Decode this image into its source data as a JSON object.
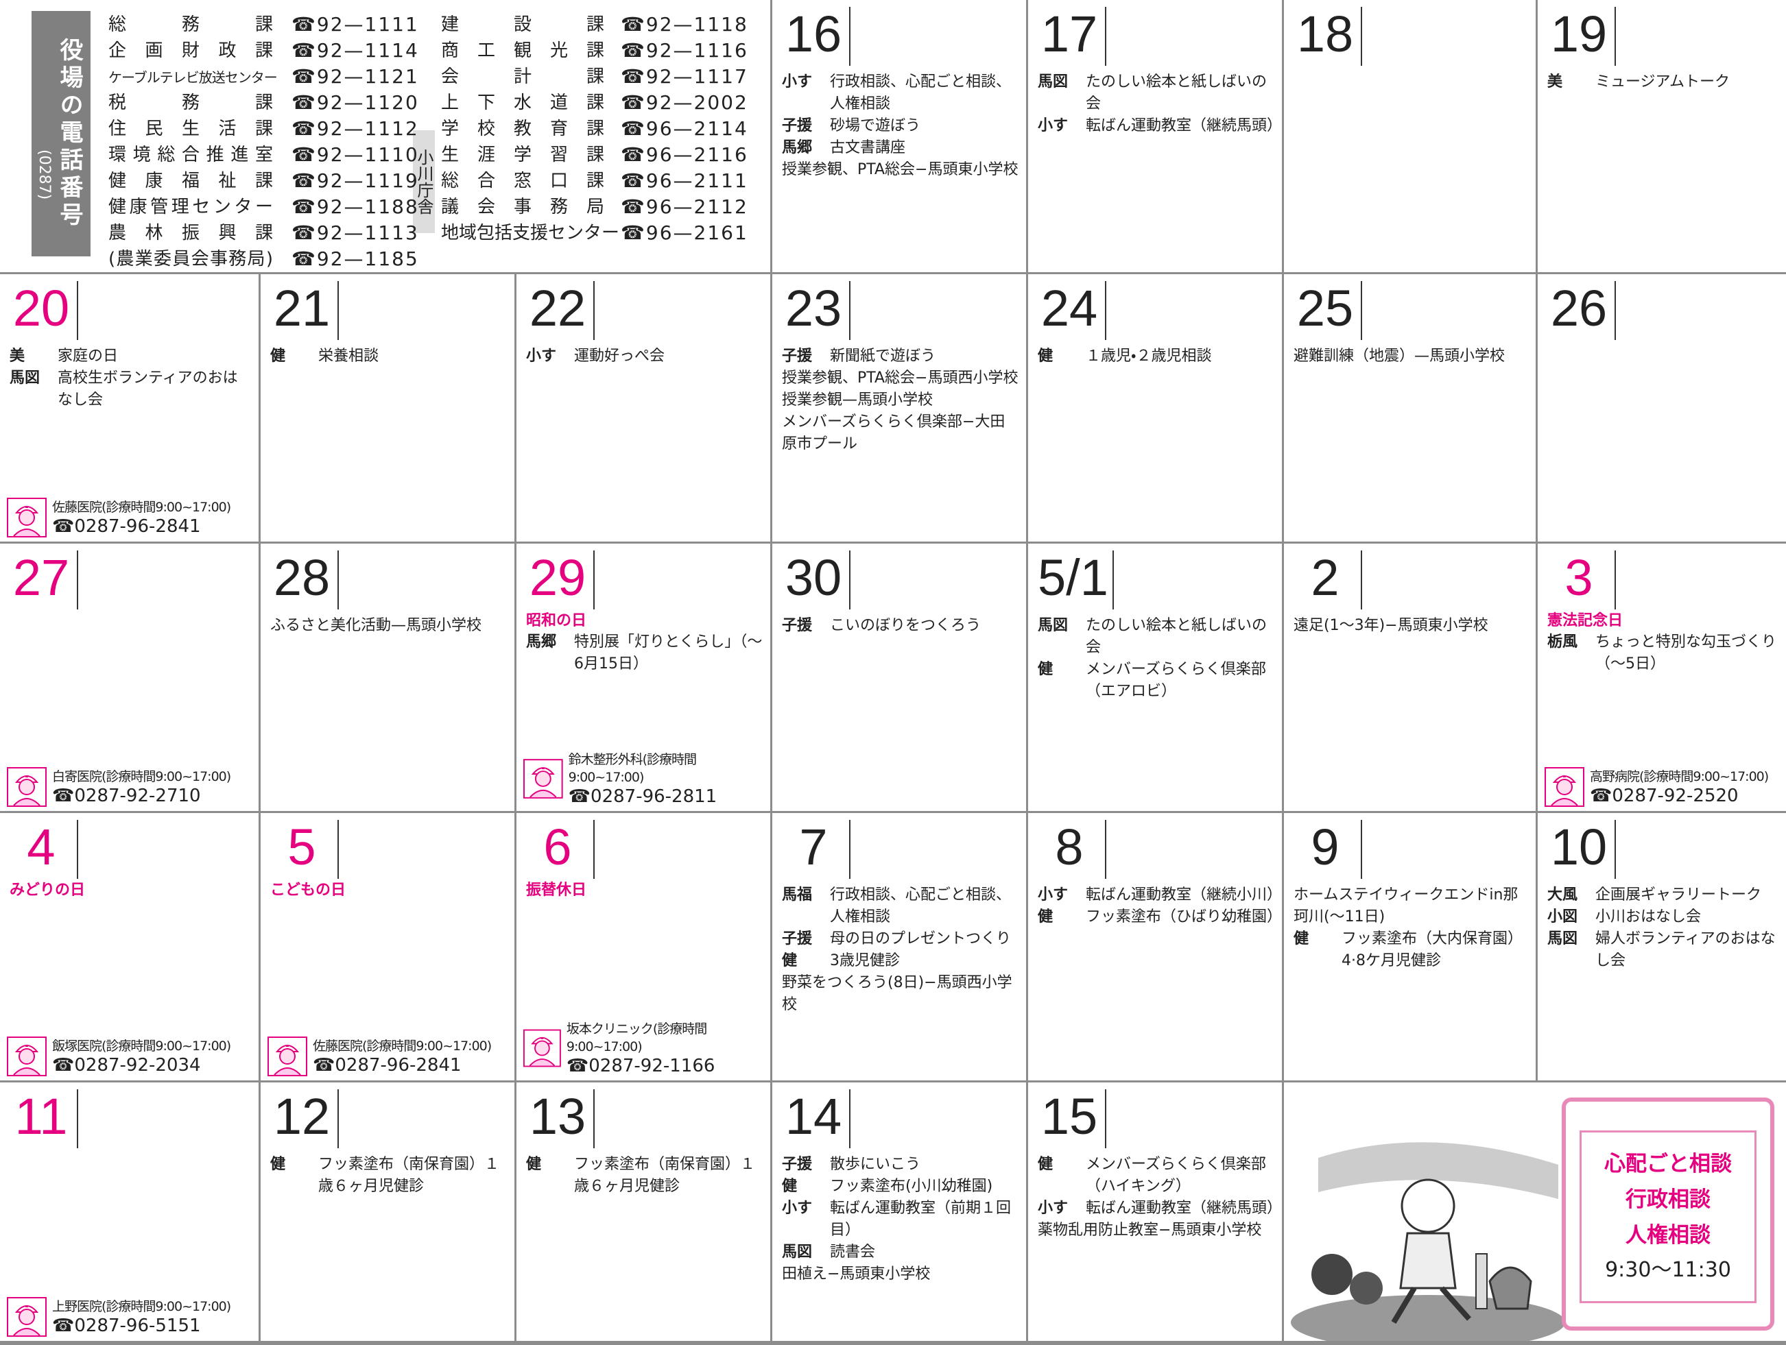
{
  "directory": {
    "title": "役場の電話番号",
    "area_code": "(0287)",
    "branch_label": "小川庁舎",
    "left": [
      {
        "name": "総務課",
        "tel": "☎92—1111"
      },
      {
        "name": "企画財政課",
        "tel": "☎92—1114"
      },
      {
        "name": "ケーブルテレビ放送センター",
        "tel": "☎92—1121"
      },
      {
        "name": "税務課",
        "tel": "☎92—1120"
      },
      {
        "name": "住民生活課",
        "tel": "☎92—1112"
      },
      {
        "name": "環境総合推進室",
        "tel": "☎92—1110"
      },
      {
        "name": "健康福祉課",
        "tel": "☎92—1119"
      },
      {
        "name": "健康管理センター",
        "tel": "☎92—1188"
      },
      {
        "name": "農林振興課",
        "tel": "☎92—1113"
      },
      {
        "name": "(農業委員会事務局)",
        "tel": "☎92—1185"
      }
    ],
    "right": [
      {
        "name": "建設課",
        "tel": "☎92—1118"
      },
      {
        "name": "商工観光課",
        "tel": "☎92—1116"
      },
      {
        "name": "会計課",
        "tel": "☎92—1117"
      },
      {
        "name": "上下水道課",
        "tel": "☎92—2002"
      },
      {
        "name": "学校教育課",
        "tel": "☎96—2114"
      },
      {
        "name": "生涯学習課",
        "tel": "☎96—2116"
      },
      {
        "name": "総合窓口課",
        "tel": "☎96—2111"
      },
      {
        "name": "議会事務局",
        "tel": "☎96—2112"
      },
      {
        "name": "地域包括支援センター",
        "tel": "☎96—2161"
      }
    ]
  },
  "days": [
    {
      "date": "16",
      "events": [
        {
          "tag": "小す",
          "text": "行政相談、心配ごと相談、人権相談"
        },
        {
          "tag": "子援",
          "text": "砂場で遊ぼう"
        },
        {
          "tag": "馬郷",
          "text": "古文書講座"
        },
        {
          "text": "授業参観、PTA総会−馬頭東小学校"
        }
      ]
    },
    {
      "date": "17",
      "events": [
        {
          "tag": "馬図",
          "text": "たのしい絵本と紙しばいの会"
        },
        {
          "tag": "小す",
          "text": "転ばん運動教室（継続馬頭）"
        }
      ]
    },
    {
      "date": "18",
      "events": []
    },
    {
      "date": "19",
      "events": [
        {
          "tag": "美",
          "text": "ミュージアムトーク"
        }
      ]
    },
    {
      "date": "20",
      "color": "#e4007f",
      "events": [
        {
          "tag": "美",
          "text": "家庭の日"
        },
        {
          "tag": "馬図",
          "text": "高校生ボランティアのおはなし会"
        }
      ],
      "clinic": {
        "name": "佐藤医院(診療時間9:00~17:00)",
        "tel": "☎0287-96-2841"
      }
    },
    {
      "date": "21",
      "events": [
        {
          "tag": "健",
          "text": "栄養相談"
        }
      ]
    },
    {
      "date": "22",
      "events": [
        {
          "tag": "小す",
          "text": "運動好っぺ会"
        }
      ]
    },
    {
      "date": "23",
      "events": [
        {
          "tag": "子援",
          "text": "新聞紙で遊ぼう"
        },
        {
          "text": "授業参観、PTA総会−馬頭西小学校"
        },
        {
          "text": "授業参観—馬頭小学校"
        },
        {
          "text": "メンバーズらくらく倶楽部−大田原市プール"
        }
      ]
    },
    {
      "date": "24",
      "events": [
        {
          "tag": "健",
          "text": "１歳児・２歳児相談"
        }
      ]
    },
    {
      "date": "25",
      "events": [
        {
          "text": "避難訓練（地震）—馬頭小学校"
        }
      ]
    },
    {
      "date": "26",
      "events": []
    },
    {
      "date": "27",
      "color": "#e4007f",
      "events": [],
      "clinic": {
        "name": "白寄医院(診療時間9:00~17:00)",
        "tel": "☎0287-92-2710"
      }
    },
    {
      "date": "28",
      "events": [
        {
          "text": "ふるさと美化活動—馬頭小学校"
        }
      ]
    },
    {
      "date": "29",
      "color": "#e4007f",
      "holiday": "昭和の日",
      "events": [
        {
          "tag": "馬郷",
          "text": "特別展「灯りとくらし」（〜6月15日）"
        }
      ],
      "clinic": {
        "name": "鈴木整形外科(診療時間9:00~17:00)",
        "tel": "☎0287-96-2811"
      }
    },
    {
      "date": "30",
      "events": [
        {
          "tag": "子援",
          "text": "こいのぼりをつくろう"
        }
      ]
    },
    {
      "date": "5/1",
      "events": [
        {
          "tag": "馬図",
          "text": "たのしい絵本と紙しばいの会"
        },
        {
          "tag": "健",
          "text": "メンバーズらくらく倶楽部（エアロビ）"
        }
      ]
    },
    {
      "date": "2",
      "events": [
        {
          "text": "遠足(1〜3年)−馬頭東小学校"
        }
      ]
    },
    {
      "date": "3",
      "color": "#e4007f",
      "holiday": "憲法記念日",
      "events": [
        {
          "tag": "栃風",
          "text": "ちょっと特別な勾玉づくり（〜5日）"
        }
      ],
      "clinic": {
        "name": "高野病院(診療時間9:00~17:00)",
        "tel": "☎0287-92-2520"
      }
    },
    {
      "date": "4",
      "color": "#e4007f",
      "holiday": "みどりの日",
      "events": [],
      "clinic": {
        "name": "飯塚医院(診療時間9:00~17:00)",
        "tel": "☎0287-92-2034"
      }
    },
    {
      "date": "5",
      "color": "#e4007f",
      "holiday": "こどもの日",
      "events": [],
      "clinic": {
        "name": "佐藤医院(診療時間9:00~17:00)",
        "tel": "☎0287-96-2841"
      }
    },
    {
      "date": "6",
      "color": "#e4007f",
      "holiday": "振替休日",
      "events": [],
      "clinic": {
        "name": "坂本クリニック(診療時間9:00~17:00)",
        "tel": "☎0287-92-1166"
      }
    },
    {
      "date": "7",
      "events": [
        {
          "tag": "馬福",
          "text": "行政相談、心配ごと相談、人権相談"
        },
        {
          "tag": "子援",
          "text": "母の日のプレゼントつくり"
        },
        {
          "tag": "健",
          "text": "3歳児健診"
        },
        {
          "text": "野菜をつくろう(8日)−馬頭西小学校"
        }
      ]
    },
    {
      "date": "8",
      "events": [
        {
          "tag": "小す",
          "text": "転ばん運動教室（継続小川）"
        },
        {
          "tag": "健",
          "text": "フッ素塗布（ひばり幼稚園）"
        }
      ]
    },
    {
      "date": "9",
      "events": [
        {
          "text": "ホームステイウィークエンドin那珂川(〜11日)"
        },
        {
          "tag": "健",
          "text": "フッ素塗布（大内保育園）4·8ケ月児健診"
        }
      ]
    },
    {
      "date": "10",
      "events": [
        {
          "tag": "大風",
          "text": "企画展ギャラリートーク"
        },
        {
          "tag": "小図",
          "text": "小川おはなし会"
        },
        {
          "tag": "馬図",
          "text": "婦人ボランティアのおはなし会"
        }
      ]
    },
    {
      "date": "11",
      "color": "#e4007f",
      "events": [],
      "clinic": {
        "name": "上野医院(診療時間9:00~17:00)",
        "tel": "☎0287-96-5151"
      }
    },
    {
      "date": "12",
      "events": [
        {
          "tag": "健",
          "text": "フッ素塗布（南保育園）１歳６ヶ月児健診"
        }
      ]
    },
    {
      "date": "13",
      "events": [
        {
          "tag": "健",
          "text": "フッ素塗布（南保育園）１歳６ヶ月児健診"
        }
      ]
    },
    {
      "date": "14",
      "events": [
        {
          "tag": "子援",
          "text": "散歩にいこう"
        },
        {
          "tag": "健",
          "text": "フッ素塗布(小川幼稚園)"
        },
        {
          "tag": "小す",
          "text": "転ばん運動教室（前期１回目）"
        },
        {
          "tag": "馬図",
          "text": "読書会"
        },
        {
          "text": "田植え−馬頭東小学校"
        }
      ]
    },
    {
      "date": "15",
      "events": [
        {
          "tag": "健",
          "text": "メンバーズらくらく倶楽部（ハイキング）"
        },
        {
          "tag": "小す",
          "text": "転ばん運動教室（継続馬頭）"
        },
        {
          "text": "薬物乱用防止教室−馬頭東小学校"
        }
      ]
    }
  ],
  "notice": {
    "items": [
      "心配ごと相談",
      "行政相談",
      "人権相談"
    ],
    "time": "9:30〜11:30"
  }
}
